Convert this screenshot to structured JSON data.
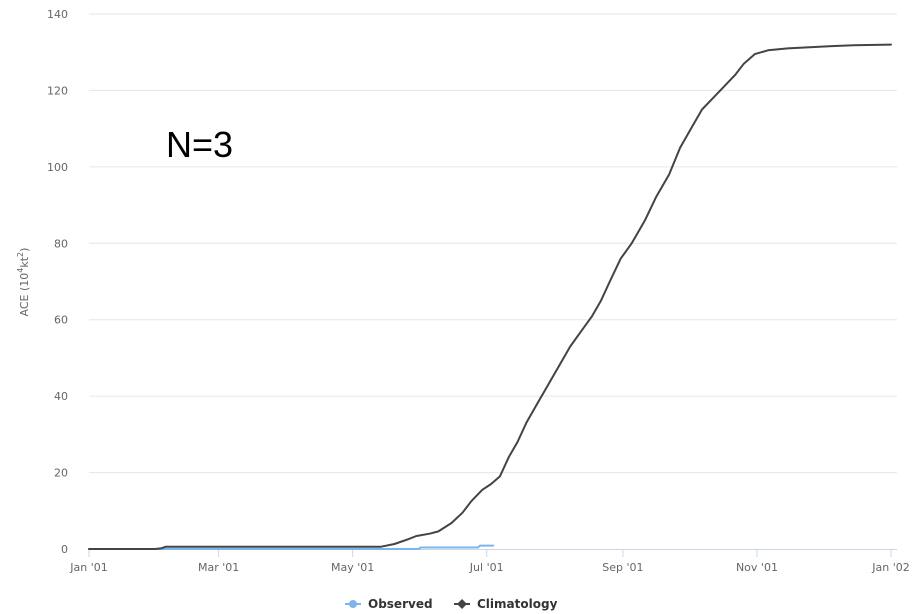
{
  "chart_data": {
    "type": "line",
    "annotation": "N=3",
    "ylabel_main": "ACE (10",
    "ylabel_sup1": "4",
    "ylabel_mid": "kt",
    "ylabel_sup2": "2",
    "ylabel_end": ")",
    "ylim": [
      0,
      140
    ],
    "yticks": [
      0,
      20,
      40,
      60,
      80,
      100,
      120,
      140
    ],
    "xlim": [
      "2001-01-01",
      "2002-01-01"
    ],
    "xticks": [
      {
        "date": "2001-01-01",
        "label": "Jan '01"
      },
      {
        "date": "2001-03-01",
        "label": "Mar '01"
      },
      {
        "date": "2001-05-01",
        "label": "May '01"
      },
      {
        "date": "2001-07-01",
        "label": "Jul '01"
      },
      {
        "date": "2001-09-01",
        "label": "Sep '01"
      },
      {
        "date": "2001-11-01",
        "label": "Nov '01"
      },
      {
        "date": "2002-01-01",
        "label": "Jan '02"
      }
    ],
    "grid": "horizontal",
    "legend_position": "bottom-center",
    "series": [
      {
        "name": "Observed",
        "color": "#7cb5ec",
        "marker": "circle",
        "points": [
          [
            "2001-01-01",
            0
          ],
          [
            "2001-05-01",
            0
          ],
          [
            "2001-05-31",
            0
          ],
          [
            "2001-06-01",
            0.4
          ],
          [
            "2001-06-27",
            0.4
          ],
          [
            "2001-06-28",
            0.9
          ],
          [
            "2001-07-04",
            0.9
          ]
        ]
      },
      {
        "name": "Climatology",
        "color": "#434348",
        "marker": "diamond",
        "points": [
          [
            "2001-01-01",
            0
          ],
          [
            "2001-01-31",
            0
          ],
          [
            "2001-02-03",
            0.2
          ],
          [
            "2001-02-05",
            0.6
          ],
          [
            "2001-05-14",
            0.6
          ],
          [
            "2001-05-20",
            1.3
          ],
          [
            "2001-05-26",
            2.5
          ],
          [
            "2001-05-30",
            3.4
          ],
          [
            "2001-06-05",
            4.0
          ],
          [
            "2001-06-09",
            4.6
          ],
          [
            "2001-06-15",
            6.8
          ],
          [
            "2001-06-20",
            9.5
          ],
          [
            "2001-06-24",
            12.5
          ],
          [
            "2001-06-29",
            15.5
          ],
          [
            "2001-07-03",
            17.0
          ],
          [
            "2001-07-07",
            19.0
          ],
          [
            "2001-07-11",
            24.0
          ],
          [
            "2001-07-15",
            28.0
          ],
          [
            "2001-07-19",
            33.0
          ],
          [
            "2001-07-24",
            38.0
          ],
          [
            "2001-07-29",
            43.0
          ],
          [
            "2001-08-03",
            48.0
          ],
          [
            "2001-08-08",
            53.0
          ],
          [
            "2001-08-13",
            57.0
          ],
          [
            "2001-08-18",
            61.0
          ],
          [
            "2001-08-22",
            65.0
          ],
          [
            "2001-08-26",
            70.0
          ],
          [
            "2001-08-31",
            76.0
          ],
          [
            "2001-09-05",
            80.0
          ],
          [
            "2001-09-11",
            86.0
          ],
          [
            "2001-09-16",
            92.0
          ],
          [
            "2001-09-22",
            98.0
          ],
          [
            "2001-09-27",
            105.0
          ],
          [
            "2001-10-02",
            110.0
          ],
          [
            "2001-10-07",
            115.0
          ],
          [
            "2001-10-12",
            118.0
          ],
          [
            "2001-10-17",
            121.0
          ],
          [
            "2001-10-22",
            124.0
          ],
          [
            "2001-10-26",
            127.0
          ],
          [
            "2001-10-31",
            129.5
          ],
          [
            "2001-11-06",
            130.5
          ],
          [
            "2001-11-15",
            131.0
          ],
          [
            "2001-11-25",
            131.3
          ],
          [
            "2001-12-05",
            131.6
          ],
          [
            "2001-12-15",
            131.8
          ],
          [
            "2002-01-01",
            132.0
          ]
        ]
      }
    ]
  }
}
